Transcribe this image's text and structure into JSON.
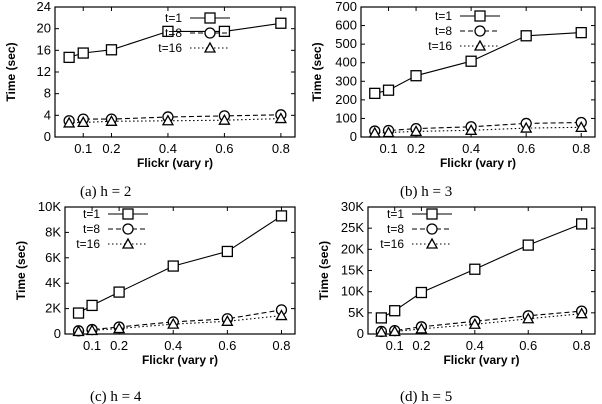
{
  "figure": {
    "panels": [
      {
        "caption": "(a)  h = 2"
      },
      {
        "caption": "(b)  h = 3"
      },
      {
        "caption": "(c)  h = 4"
      },
      {
        "caption": "(d)  h = 5"
      }
    ]
  },
  "chart_data": [
    {
      "type": "line",
      "xlabel": "Flickr (vary r)",
      "ylabel": "Time (sec)",
      "x": [
        0.05,
        0.1,
        0.2,
        0.4,
        0.6,
        0.8
      ],
      "xticks": [
        0.1,
        0.2,
        0.4,
        0.6,
        0.8
      ],
      "xtick_labels": [
        "0.1",
        "0.2",
        "0.4",
        "0.6",
        "0.8"
      ],
      "xlim": [
        0,
        0.85
      ],
      "ylim": [
        0,
        24
      ],
      "yticks": [
        0,
        4,
        8,
        12,
        16,
        20,
        24
      ],
      "ytick_labels": [
        "0",
        "4",
        "8",
        "12",
        "16",
        "20",
        "24"
      ],
      "legend_position": "right",
      "series": [
        {
          "name": "t=1",
          "marker": "square",
          "dash": "solid",
          "values": [
            14.7,
            15.5,
            16.1,
            19.5,
            19.5,
            21.0
          ]
        },
        {
          "name": "t=8",
          "marker": "circle",
          "dash": "dashed",
          "values": [
            3.0,
            3.3,
            3.3,
            3.7,
            3.9,
            4.1
          ]
        },
        {
          "name": "t=16",
          "marker": "triangle",
          "dash": "dotted",
          "values": [
            2.6,
            2.7,
            2.9,
            3.0,
            3.1,
            3.4
          ]
        }
      ]
    },
    {
      "type": "line",
      "xlabel": "Flickr (vary r)",
      "ylabel": "Time (sec)",
      "x": [
        0.05,
        0.1,
        0.2,
        0.4,
        0.6,
        0.8
      ],
      "xticks": [
        0.1,
        0.2,
        0.4,
        0.6,
        0.8
      ],
      "xtick_labels": [
        "0.1",
        "0.2",
        "0.4",
        "0.6",
        "0.8"
      ],
      "xlim": [
        0,
        0.85
      ],
      "ylim": [
        0,
        700
      ],
      "yticks": [
        0,
        100,
        200,
        300,
        400,
        500,
        600,
        700
      ],
      "ytick_labels": [
        "0",
        "100",
        "200",
        "300",
        "400",
        "500",
        "600",
        "700"
      ],
      "legend_position": "top-right",
      "series": [
        {
          "name": "t=1",
          "marker": "square",
          "dash": "solid",
          "values": [
            235,
            252,
            330,
            408,
            545,
            562
          ]
        },
        {
          "name": "t=8",
          "marker": "circle",
          "dash": "dashed",
          "values": [
            32,
            35,
            45,
            55,
            73,
            78
          ]
        },
        {
          "name": "t=16",
          "marker": "triangle",
          "dash": "dotted",
          "values": [
            22,
            24,
            30,
            36,
            48,
            52
          ]
        }
      ]
    },
    {
      "type": "line",
      "xlabel": "Flickr (vary r)",
      "ylabel": "Time (sec)",
      "x": [
        0.05,
        0.1,
        0.2,
        0.4,
        0.6,
        0.8
      ],
      "xticks": [
        0.1,
        0.2,
        0.4,
        0.6,
        0.8
      ],
      "xtick_labels": [
        "0.1",
        "0.2",
        "0.4",
        "0.6",
        "0.8"
      ],
      "xlim": [
        0,
        0.85
      ],
      "ylim": [
        0,
        10000
      ],
      "yticks": [
        0,
        2000,
        4000,
        6000,
        8000,
        10000
      ],
      "ytick_labels": [
        "0",
        "2K",
        "4K",
        "6K",
        "8K",
        "10K"
      ],
      "legend_position": "top-left",
      "series": [
        {
          "name": "t=1",
          "marker": "square",
          "dash": "solid",
          "values": [
            1650,
            2250,
            3300,
            5350,
            6500,
            9300
          ]
        },
        {
          "name": "t=8",
          "marker": "circle",
          "dash": "dashed",
          "values": [
            250,
            350,
            550,
            950,
            1200,
            1900
          ]
        },
        {
          "name": "t=16",
          "marker": "triangle",
          "dash": "dotted",
          "values": [
            200,
            280,
            430,
            780,
            1000,
            1450
          ]
        }
      ]
    },
    {
      "type": "line",
      "xlabel": "Flickr (vary r)",
      "ylabel": "Time (sec)",
      "x": [
        0.05,
        0.1,
        0.2,
        0.4,
        0.6,
        0.8
      ],
      "xticks": [
        0.1,
        0.2,
        0.4,
        0.6,
        0.8
      ],
      "xtick_labels": [
        "0.1",
        "0.2",
        "0.4",
        "0.6",
        "0.8"
      ],
      "xlim": [
        0,
        0.85
      ],
      "ylim": [
        0,
        30000
      ],
      "yticks": [
        0,
        5000,
        10000,
        15000,
        20000,
        25000,
        30000
      ],
      "ytick_labels": [
        "0",
        "5K",
        "10K",
        "15K",
        "20K",
        "25K",
        "30K"
      ],
      "legend_position": "top-left",
      "series": [
        {
          "name": "t=1",
          "marker": "square",
          "dash": "solid",
          "values": [
            3800,
            5500,
            9800,
            15300,
            21000,
            26000
          ]
        },
        {
          "name": "t=8",
          "marker": "circle",
          "dash": "dashed",
          "values": [
            600,
            800,
            1700,
            3000,
            4300,
            5400
          ]
        },
        {
          "name": "t=16",
          "marker": "triangle",
          "dash": "dotted",
          "values": [
            450,
            600,
            1200,
            2300,
            3600,
            4800
          ]
        }
      ]
    }
  ]
}
